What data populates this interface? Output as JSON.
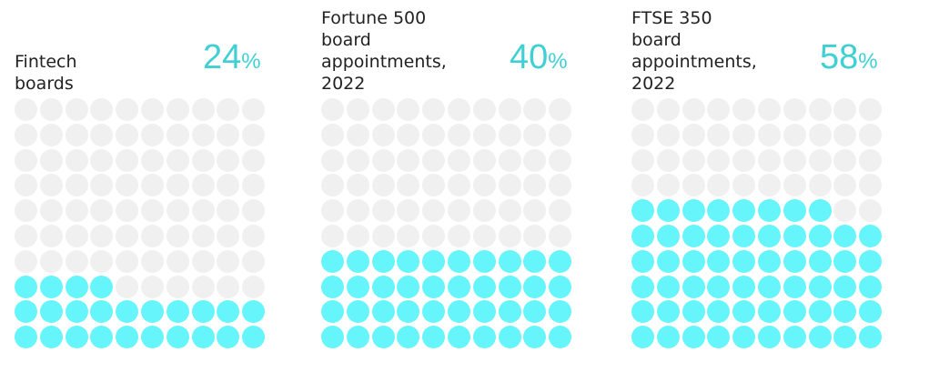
{
  "colors": {
    "filled": "#66f5fb",
    "empty": "#f0f0f0",
    "accent": "#3fd0d4",
    "text": "#222222"
  },
  "chart_data": [
    {
      "type": "waffle",
      "title": "Fintech boards",
      "value": 24,
      "value_label": "24",
      "unit": "%",
      "total": 100,
      "grid": {
        "rows": 10,
        "cols": 10
      }
    },
    {
      "type": "waffle",
      "title": "Fortune 500 board\nappointments,\n2022",
      "value": 40,
      "value_label": "40",
      "unit": "%",
      "total": 100,
      "grid": {
        "rows": 10,
        "cols": 10
      }
    },
    {
      "type": "waffle",
      "title": "FTSE 350 board\nappointments,\n2022",
      "value": 58,
      "value_label": "58",
      "unit": "%",
      "total": 100,
      "grid": {
        "rows": 10,
        "cols": 10
      }
    }
  ]
}
